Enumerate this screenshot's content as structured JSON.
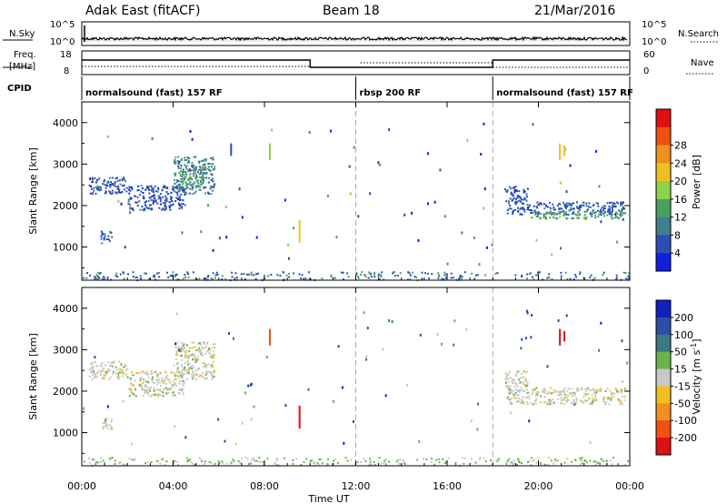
{
  "header": {
    "station": "Adak East (fitACF)",
    "beam": "Beam 18",
    "date": "21/Mar/2016"
  },
  "labels": {
    "nsky": "N.Sky",
    "nsearch": "N.Search",
    "freq_line1": "Freq.",
    "freq_line2": "[MHz]",
    "nave": "Nave",
    "cpid": "CPID",
    "xlabel": "Time UT",
    "ylabel": "Slant Range [km]"
  },
  "nsky_axis": {
    "left_top": "10^5",
    "left_bottom": "10^0",
    "right_top": "10^5",
    "right_bottom": "10^0"
  },
  "freq_axis": {
    "left_top": "18",
    "left_bottom": "8",
    "right_top": "60",
    "right_bottom": "0"
  },
  "cpid_segments": [
    {
      "start": 0,
      "end": 12,
      "label": "normalsound (fast) 157 RF"
    },
    {
      "start": 12,
      "end": 18,
      "label": "rbsp 200 RF"
    },
    {
      "start": 18,
      "end": 24,
      "label": "normalsound (fast) 157 RF"
    }
  ],
  "chart_data": [
    {
      "type": "heatmap",
      "panel": "power",
      "xlabel": "Time UT",
      "ylabel": "Slant Range [km]",
      "x_range": [
        0,
        24
      ],
      "y_range": [
        200,
        4500
      ],
      "x_ticks": [
        "00:00",
        "04:00",
        "08:00",
        "12:00",
        "16:00",
        "20:00",
        "00:00"
      ],
      "y_ticks": [
        1000,
        2000,
        3000,
        4000
      ],
      "colorbar": {
        "label": "Power [dB]",
        "ticks": [
          "4",
          "8",
          "12",
          "16",
          "20",
          "24",
          "28"
        ],
        "colors": [
          "#1020e0",
          "#2a4fb0",
          "#3f7f8f",
          "#4aa060",
          "#8cd24a",
          "#f0c020",
          "#f09020",
          "#f05010",
          "#e01010"
        ]
      },
      "regions": [
        {
          "t": [
            0.3,
            2.0
          ],
          "r": [
            2300,
            2700
          ],
          "level": 1
        },
        {
          "t": [
            2.0,
            4.5
          ],
          "r": [
            1900,
            2500
          ],
          "level": 1
        },
        {
          "t": [
            4.0,
            5.8
          ],
          "r": [
            2300,
            3200
          ],
          "level": 2
        },
        {
          "t": [
            4.3,
            5.3
          ],
          "r": [
            2500,
            2950
          ],
          "level": 3
        },
        {
          "t": [
            0.8,
            1.3
          ],
          "r": [
            1100,
            1400
          ],
          "level": 1
        },
        {
          "t": [
            18.6,
            23.8
          ],
          "r": [
            1800,
            2100
          ],
          "level": 1
        },
        {
          "t": [
            19.5,
            23.8
          ],
          "r": [
            1700,
            1880
          ],
          "level": 3
        },
        {
          "t": [
            18.5,
            19.5
          ],
          "r": [
            2100,
            2500
          ],
          "level": 1
        }
      ],
      "streaks": [
        {
          "t": 9.5,
          "r": [
            1100,
            1650
          ],
          "level": 5
        },
        {
          "t": 8.2,
          "r": [
            3100,
            3500
          ],
          "level": 4
        },
        {
          "t": 20.9,
          "r": [
            3100,
            3500
          ],
          "level": 5
        },
        {
          "t": 21.1,
          "r": [
            3200,
            3450
          ],
          "level": 5
        },
        {
          "t": 6.5,
          "r": [
            3200,
            3500
          ],
          "level": 1
        }
      ]
    },
    {
      "type": "heatmap",
      "panel": "velocity",
      "xlabel": "Time UT",
      "ylabel": "Slant Range [km]",
      "x_range": [
        0,
        24
      ],
      "y_range": [
        200,
        4500
      ],
      "x_ticks": [
        "00:00",
        "04:00",
        "08:00",
        "12:00",
        "16:00",
        "20:00",
        "00:00"
      ],
      "y_ticks": [
        1000,
        2000,
        3000,
        4000
      ],
      "colorbar": {
        "label": "Velocity [m s-1]",
        "ticks": [
          "200",
          "100",
          "50",
          "15",
          "-15",
          "-50",
          "-100",
          "-200"
        ],
        "colors": [
          "#1020c0",
          "#2a4fa8",
          "#3a7a80",
          "#6ab44a",
          "#c8c8c8",
          "#f0c020",
          "#f09020",
          "#f05010",
          "#e01010"
        ]
      },
      "regions": [
        {
          "t": [
            0.3,
            2.0
          ],
          "r": [
            2300,
            2750
          ],
          "level": 4
        },
        {
          "t": [
            2.0,
            4.5
          ],
          "r": [
            1900,
            2500
          ],
          "level": 4
        },
        {
          "t": [
            4.0,
            5.8
          ],
          "r": [
            2300,
            3200
          ],
          "level": 4
        },
        {
          "t": [
            0.8,
            1.3
          ],
          "r": [
            1100,
            1400
          ],
          "level": 4
        },
        {
          "t": [
            18.6,
            23.8
          ],
          "r": [
            1700,
            2100
          ],
          "level": 4
        },
        {
          "t": [
            18.5,
            19.5
          ],
          "r": [
            2100,
            2500
          ],
          "level": 4
        }
      ],
      "streaks": [
        {
          "t": 9.5,
          "r": [
            1100,
            1650
          ],
          "level": 8
        },
        {
          "t": 8.2,
          "r": [
            3100,
            3500
          ],
          "level": 7
        },
        {
          "t": 20.9,
          "r": [
            3100,
            3500
          ],
          "level": 8
        },
        {
          "t": 21.1,
          "r": [
            3200,
            3450
          ],
          "level": 8
        }
      ]
    }
  ]
}
